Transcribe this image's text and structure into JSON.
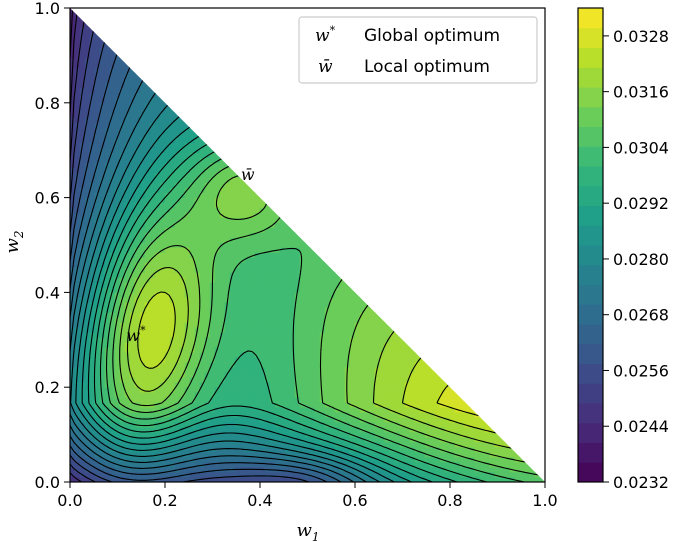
{
  "chart_data": {
    "type": "heatmap",
    "subtype": "filled-contour-on-simplex",
    "title": "",
    "xlabel": "w",
    "xlabel_sub": "1",
    "ylabel": "w",
    "ylabel_sub": "2",
    "xlim": [
      0.0,
      1.0
    ],
    "ylim": [
      0.0,
      1.0
    ],
    "x_ticks": [
      "0.0",
      "0.2",
      "0.4",
      "0.6",
      "0.8",
      "1.0"
    ],
    "y_ticks": [
      "0.0",
      "0.2",
      "0.4",
      "0.6",
      "0.8",
      "1.0"
    ],
    "domain": "w1 + w2 <= 1",
    "grid": false,
    "colormap": "viridis",
    "colorbar": {
      "min": 0.0232,
      "max": 0.0334,
      "ticks": [
        "0.0232",
        "0.0244",
        "0.0256",
        "0.0268",
        "0.0280",
        "0.0292",
        "0.0304",
        "0.0316",
        "0.0328"
      ]
    },
    "optima": [
      {
        "symbol": "w",
        "superscript": "*",
        "label": "Global optimum",
        "w1": 0.16,
        "w2": 0.31,
        "value": 0.0333
      },
      {
        "symbol": "w̄",
        "superscript": "",
        "label": "Local optimum",
        "w1": 0.37,
        "w2": 0.62,
        "value": 0.0326
      }
    ],
    "legend_position": "top-right"
  },
  "colors": {
    "contour_line": "#000000",
    "frame": "#000000"
  }
}
